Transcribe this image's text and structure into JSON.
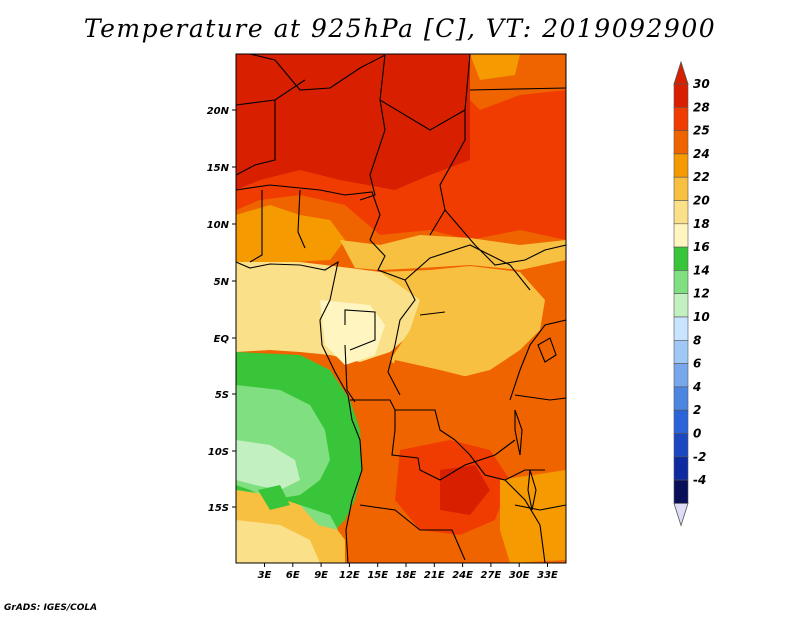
{
  "title": "Temperature at 925hPa [C], VT: 2019092900",
  "credit": "GrADS: IGES/COLA",
  "map": {
    "lat_labels": [
      "20N",
      "15N",
      "10N",
      "5N",
      "EQ",
      "5S",
      "10S",
      "15S"
    ],
    "lon_labels": [
      "3E",
      "6E",
      "9E",
      "12E",
      "15E",
      "18E",
      "21E",
      "24E",
      "27E",
      "30E",
      "33E"
    ]
  },
  "colorbar": {
    "labels": [
      "30",
      "28",
      "25",
      "24",
      "22",
      "20",
      "18",
      "16",
      "14",
      "12",
      "10",
      "8",
      "6",
      "4",
      "2",
      "0",
      "-2",
      "-4"
    ],
    "colors": [
      "#d82000",
      "#f03c00",
      "#f06400",
      "#f59a00",
      "#f8c040",
      "#fbe08a",
      "#fff5c0",
      "#39c539",
      "#80df80",
      "#c2f0c0",
      "#c8e4ff",
      "#a0c8f5",
      "#78a8ec",
      "#4c86e0",
      "#2a64d8",
      "#1b48c0",
      "#0e2aa0",
      "#08105a"
    ],
    "top_arrow_color": "#d82000",
    "bottom_arrow_color": "#ddddf8"
  }
}
